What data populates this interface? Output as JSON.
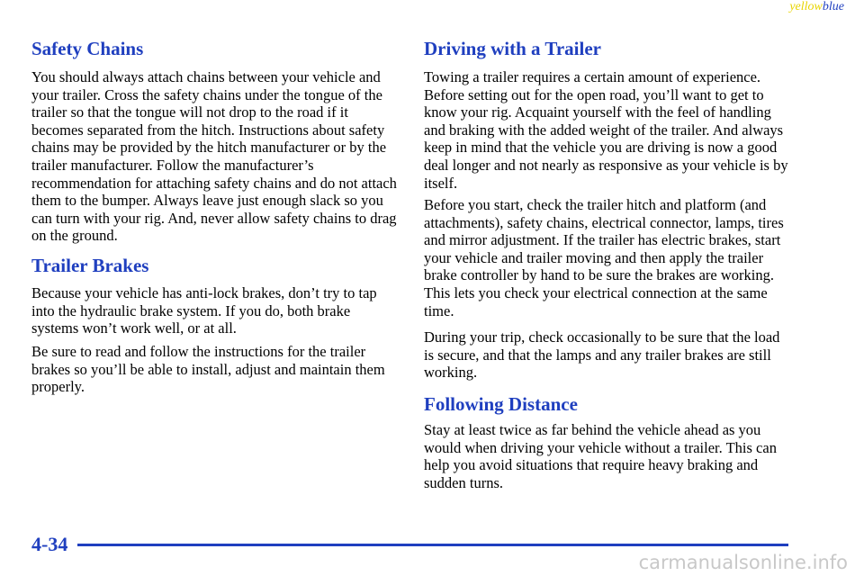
{
  "header": {
    "marker_yellow": "yellow",
    "marker_blue": "blue"
  },
  "left_column": [
    {
      "heading": "Safety Chains",
      "paragraphs": [
        "You should always attach chains between your vehicle and your trailer. Cross the safety chains under the tongue of the trailer so that the tongue will not drop to the road if it becomes separated from the hitch. Instructions about safety chains may be provided by the hitch manufacturer or by the trailer manufacturer. Follow the manufacturer’s recommendation for attaching safety chains and do not attach them to the bumper. Always leave just enough slack so you can turn with your rig. And, never allow safety chains to drag on the ground."
      ]
    },
    {
      "heading": "Trailer Brakes",
      "paragraphs": [
        "Because your vehicle has anti-lock brakes, don’t try to tap into the hydraulic brake system. If you do, both brake systems won’t work well, or at all.",
        "Be sure to read and follow the instructions for the trailer brakes so you’ll be able to install, adjust and maintain them properly."
      ]
    }
  ],
  "right_column": [
    {
      "heading": "Driving with a Trailer",
      "paragraphs": [
        "Towing a trailer requires a certain amount of experience. Before setting out for the open road, you’ll want to get to know your rig. Acquaint yourself with the feel of handling and braking with the added weight of the trailer. And always keep in mind that the vehicle you are driving is now a good deal longer and not nearly as responsive as your vehicle is by itself.",
        "Before you start, check the trailer hitch and platform (and attachments), safety chains, electrical connector, lamps, tires and mirror adjustment. If the trailer has electric brakes, start your vehicle and trailer moving and then apply the trailer brake controller by hand to be sure the brakes are working. This lets you check your electrical connection at the same time.",
        "During your trip, check occasionally to be sure that the load is secure, and that the lamps and any trailer brakes are still working."
      ]
    },
    {
      "heading": "Following Distance",
      "paragraphs": [
        "Stay at least twice as far behind the vehicle ahead as you would when driving your vehicle without a trailer. This can help you avoid situations that require heavy braking and sudden turns."
      ]
    }
  ],
  "footer": {
    "page_number": "4-34",
    "watermark": "carmanualsonline.info"
  }
}
